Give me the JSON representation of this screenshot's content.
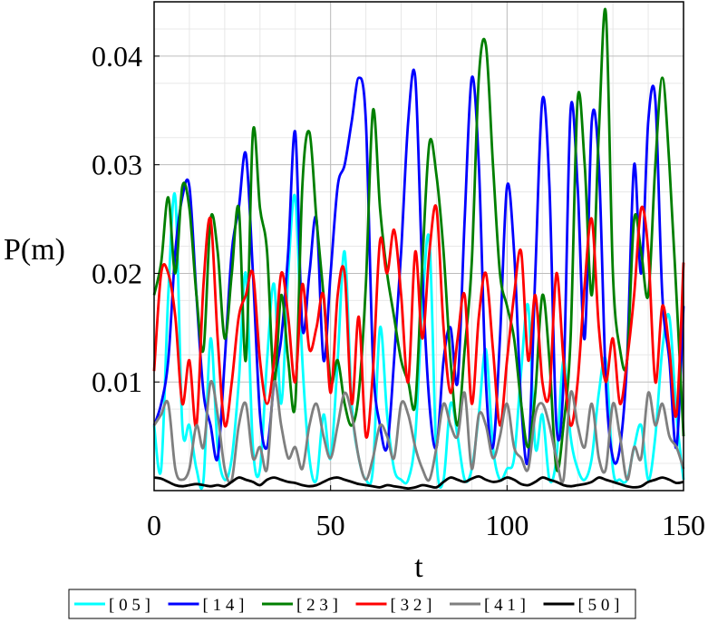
{
  "chart_data": {
    "type": "line",
    "xlabel": "t",
    "ylabel": "P(m)",
    "xlim": [
      0,
      150
    ],
    "ylim": [
      0,
      0.045
    ],
    "x_ticks": [
      0,
      50,
      100,
      150
    ],
    "y_ticks": [
      0.01,
      0.02,
      0.03,
      0.04
    ],
    "x_tick_labels": [
      "0",
      "50",
      "100",
      "150"
    ],
    "y_tick_labels": [
      "0.01",
      "0.02",
      "0.03",
      "0.04"
    ],
    "grid": true,
    "legend_position": "bottom",
    "x": [
      0,
      2,
      4,
      6,
      8,
      10,
      12,
      14,
      16,
      18,
      20,
      22,
      24,
      26,
      28,
      30,
      32,
      34,
      36,
      38,
      40,
      42,
      44,
      46,
      48,
      50,
      52,
      54,
      56,
      58,
      60,
      62,
      64,
      66,
      68,
      70,
      72,
      74,
      76,
      78,
      80,
      82,
      84,
      86,
      88,
      90,
      92,
      94,
      96,
      98,
      100,
      102,
      104,
      106,
      108,
      110,
      112,
      114,
      116,
      118,
      120,
      122,
      124,
      126,
      128,
      130,
      132,
      134,
      136,
      138,
      140,
      142,
      144,
      146,
      148,
      150
    ],
    "series": [
      {
        "name": "[ 0 5 ]",
        "color": "#00ffff",
        "values": [
          0.006,
          0.002,
          0.018,
          0.027,
          0.006,
          0.006,
          0.002,
          0.001,
          0.014,
          0.004,
          0.001,
          0.003,
          0.01,
          0.02,
          0.004,
          0.002,
          0.012,
          0.019,
          0.008,
          0.02,
          0.027,
          0.012,
          0.003,
          0.001,
          0.007,
          0.003,
          0.012,
          0.022,
          0.008,
          0.003,
          0.001,
          0.002,
          0.015,
          0.007,
          0.002,
          0.001,
          0.001,
          0.005,
          0.017,
          0.023,
          0.003,
          0.001,
          0.008,
          0.005,
          0.001,
          0.002,
          0.007,
          0.013,
          0.004,
          0.001,
          0.002,
          0.003,
          0.011,
          0.017,
          0.004,
          0.007,
          0.001,
          0.003,
          0.012,
          0.005,
          0.002,
          0.001,
          0.003,
          0.009,
          0.012,
          0.002,
          0.001,
          0.001,
          0.004,
          0.006,
          0.001,
          0.005,
          0.013,
          0.016,
          0.007,
          0.001
        ]
      },
      {
        "name": "[ 1 4 ]",
        "color": "#0000ff",
        "values": [
          0.006,
          0.008,
          0.012,
          0.022,
          0.027,
          0.028,
          0.018,
          0.009,
          0.006,
          0.003,
          0.012,
          0.022,
          0.026,
          0.031,
          0.02,
          0.007,
          0.004,
          0.01,
          0.014,
          0.022,
          0.033,
          0.015,
          0.02,
          0.025,
          0.012,
          0.02,
          0.028,
          0.03,
          0.034,
          0.038,
          0.034,
          0.012,
          0.006,
          0.004,
          0.012,
          0.022,
          0.034,
          0.038,
          0.02,
          0.008,
          0.004,
          0.012,
          0.015,
          0.01,
          0.025,
          0.038,
          0.03,
          0.01,
          0.004,
          0.014,
          0.028,
          0.022,
          0.008,
          0.003,
          0.02,
          0.036,
          0.028,
          0.006,
          0.01,
          0.035,
          0.028,
          0.014,
          0.034,
          0.03,
          0.01,
          0.003,
          0.004,
          0.012,
          0.03,
          0.02,
          0.034,
          0.036,
          0.018,
          0.012,
          0.004,
          0.017
        ]
      },
      {
        "name": "[ 2 3 ]",
        "color": "#007f00",
        "values": [
          0.018,
          0.021,
          0.027,
          0.02,
          0.028,
          0.026,
          0.018,
          0.013,
          0.025,
          0.022,
          0.014,
          0.02,
          0.026,
          0.012,
          0.033,
          0.026,
          0.022,
          0.01,
          0.018,
          0.012,
          0.008,
          0.028,
          0.033,
          0.025,
          0.018,
          0.01,
          0.012,
          0.008,
          0.006,
          0.009,
          0.019,
          0.035,
          0.026,
          0.02,
          0.016,
          0.012,
          0.01,
          0.008,
          0.021,
          0.032,
          0.029,
          0.022,
          0.012,
          0.006,
          0.013,
          0.021,
          0.038,
          0.041,
          0.03,
          0.02,
          0.017,
          0.014,
          0.008,
          0.004,
          0.009,
          0.018,
          0.012,
          0.002,
          0.006,
          0.014,
          0.036,
          0.03,
          0.018,
          0.033,
          0.044,
          0.02,
          0.013,
          0.012,
          0.025,
          0.022,
          0.018,
          0.03,
          0.038,
          0.03,
          0.018,
          0.005
        ]
      },
      {
        "name": "[ 3 2 ]",
        "color": "#ff0000",
        "values": [
          0.011,
          0.02,
          0.02,
          0.016,
          0.008,
          0.012,
          0.006,
          0.019,
          0.025,
          0.014,
          0.006,
          0.01,
          0.016,
          0.018,
          0.02,
          0.012,
          0.008,
          0.012,
          0.02,
          0.016,
          0.01,
          0.019,
          0.013,
          0.015,
          0.018,
          0.009,
          0.018,
          0.02,
          0.008,
          0.016,
          0.005,
          0.011,
          0.023,
          0.02,
          0.024,
          0.018,
          0.01,
          0.022,
          0.014,
          0.022,
          0.026,
          0.015,
          0.009,
          0.014,
          0.018,
          0.008,
          0.016,
          0.02,
          0.013,
          0.006,
          0.012,
          0.018,
          0.022,
          0.012,
          0.018,
          0.01,
          0.009,
          0.02,
          0.012,
          0.006,
          0.01,
          0.019,
          0.025,
          0.015,
          0.01,
          0.014,
          0.008,
          0.012,
          0.018,
          0.026,
          0.022,
          0.01,
          0.017,
          0.013,
          0.007,
          0.021
        ]
      },
      {
        "name": "[ 4 1 ]",
        "color": "#7f7f7f",
        "values": [
          0.006,
          0.007,
          0.008,
          0.002,
          0.001,
          0.002,
          0.006,
          0.004,
          0.01,
          0.007,
          0.002,
          0.001,
          0.006,
          0.008,
          0.003,
          0.004,
          0.002,
          0.01,
          0.006,
          0.003,
          0.004,
          0.002,
          0.006,
          0.008,
          0.005,
          0.003,
          0.006,
          0.009,
          0.007,
          0.003,
          0.001,
          0.003,
          0.006,
          0.005,
          0.003,
          0.008,
          0.007,
          0.004,
          0.002,
          0.001,
          0.004,
          0.008,
          0.006,
          0.005,
          0.009,
          0.002,
          0.007,
          0.006,
          0.003,
          0.005,
          0.008,
          0.004,
          0.003,
          0.002,
          0.007,
          0.008,
          0.006,
          0.003,
          0.001,
          0.009,
          0.006,
          0.004,
          0.008,
          0.003,
          0.002,
          0.008,
          0.005,
          0.001,
          0.004,
          0.003,
          0.009,
          0.006,
          0.008,
          0.005,
          0.004,
          0.002
        ]
      },
      {
        "name": "[ 5 0 ]",
        "color": "#000000",
        "values": [
          0.0012,
          0.0011,
          0.0008,
          0.0005,
          0.0004,
          0.0005,
          0.0006,
          0.0005,
          0.0004,
          0.0005,
          0.0004,
          0.0008,
          0.0012,
          0.001,
          0.0008,
          0.0005,
          0.001,
          0.0012,
          0.001,
          0.0008,
          0.0007,
          0.0005,
          0.0004,
          0.0005,
          0.0008,
          0.0011,
          0.0012,
          0.001,
          0.0008,
          0.0006,
          0.0005,
          0.0004,
          0.0003,
          0.0005,
          0.0004,
          0.0003,
          0.0002,
          0.0003,
          0.0005,
          0.0004,
          0.0003,
          0.0008,
          0.0012,
          0.001,
          0.0008,
          0.0011,
          0.0013,
          0.001,
          0.0008,
          0.0009,
          0.0012,
          0.001,
          0.0006,
          0.0005,
          0.0008,
          0.0012,
          0.001,
          0.0008,
          0.0005,
          0.0004,
          0.0005,
          0.0006,
          0.0008,
          0.0012,
          0.001,
          0.0008,
          0.0006,
          0.0004,
          0.0003,
          0.0004,
          0.0008,
          0.001,
          0.0012,
          0.001,
          0.0007,
          0.0008
        ]
      }
    ]
  }
}
